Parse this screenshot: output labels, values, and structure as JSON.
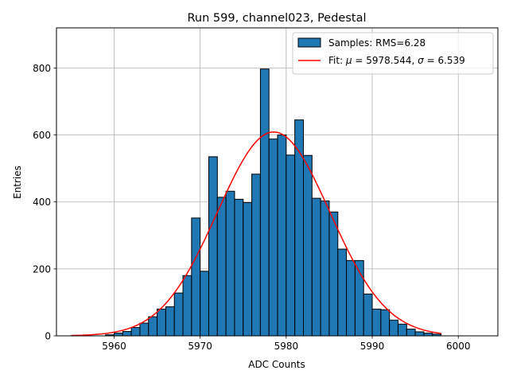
{
  "chart_data": {
    "type": "bar",
    "title": "Run 599, channel023, Pedestal",
    "xlabel": "ADC Counts",
    "ylabel": "Entries",
    "xlim": [
      5953.3,
      6004.6
    ],
    "ylim": [
      0,
      920
    ],
    "x_ticks": [
      "5960",
      "5970",
      "5980",
      "5990",
      "6000"
    ],
    "y_ticks": [
      "0",
      "200",
      "400",
      "600",
      "800"
    ],
    "grid": true,
    "legend_position": "top-right",
    "bin_width": 1,
    "histogram": {
      "name": "Samples: RMS=6.28",
      "color": "#1f77b4",
      "bin_starts": [
        5959,
        5960,
        5961,
        5962,
        5963,
        5964,
        5965,
        5966,
        5967,
        5968,
        5969,
        5970,
        5971,
        5972,
        5973,
        5974,
        5975,
        5976,
        5977,
        5978,
        5979,
        5980,
        5981,
        5982,
        5983,
        5984,
        5985,
        5986,
        5987,
        5988,
        5989,
        5990,
        5991,
        5992,
        5993,
        5994,
        5995,
        5996,
        5997
      ],
      "values": [
        3,
        8,
        13,
        25,
        38,
        57,
        80,
        87,
        128,
        180,
        352,
        193,
        535,
        414,
        432,
        408,
        398,
        483,
        797,
        588,
        600,
        540,
        645,
        539,
        411,
        403,
        370,
        259,
        225,
        225,
        125,
        80,
        78,
        47,
        35,
        20,
        12,
        8,
        5
      ]
    },
    "fit": {
      "name": "Fit: μ = 5978.544, σ = 6.539",
      "label_prefix": "Fit: ",
      "label_mu": "μ",
      "label_mid": " = 5978.544, ",
      "label_sigma": "σ",
      "label_suffix": " = 6.539",
      "color": "#ff0000",
      "mu": 5978.544,
      "sigma": 6.539,
      "amplitude": 609,
      "x_range": [
        5955,
        5998
      ]
    }
  }
}
